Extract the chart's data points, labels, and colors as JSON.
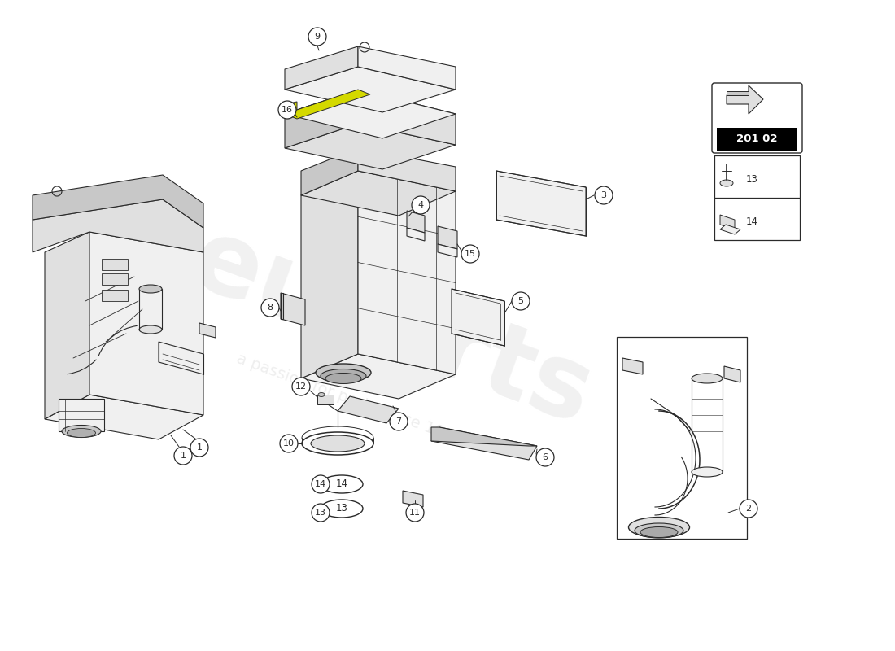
{
  "bg_color": "#ffffff",
  "line_color": "#2a2a2a",
  "fill_light": "#f0f0f0",
  "fill_mid": "#e0e0e0",
  "fill_dark": "#c8c8c8",
  "fill_darker": "#b0b0b0",
  "yellow_green": "#d4d900",
  "watermark_color": "#e8e8e8",
  "page_code": "201 02",
  "label_fontsize": 8.5,
  "parts": [
    1,
    2,
    3,
    4,
    5,
    6,
    7,
    8,
    9,
    10,
    11,
    12,
    13,
    14,
    15,
    16
  ]
}
